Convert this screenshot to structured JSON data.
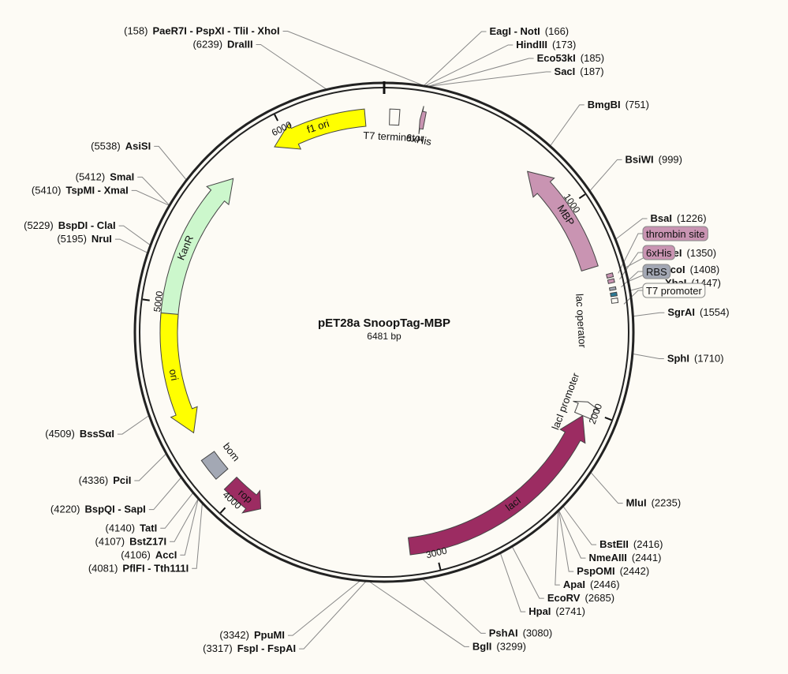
{
  "plasmid": {
    "name": "pET28a SnoopTag-MBP",
    "length_label": "6481 bp",
    "length_bp": 6481
  },
  "ticks": [
    {
      "bp": 1000,
      "label": "1000"
    },
    {
      "bp": 2000,
      "label": "2000"
    },
    {
      "bp": 3000,
      "label": "3000"
    },
    {
      "bp": 4000,
      "label": "4000"
    },
    {
      "bp": 5000,
      "label": "5000"
    },
    {
      "bp": 6000,
      "label": "6000"
    }
  ],
  "colors": {
    "background": "#fdfbf5",
    "backbone": "#222222",
    "MBP": "#c994b2",
    "lacI": "#9c2c62",
    "rop": "#9c2c62",
    "KanR": "#ccf7cc",
    "ori": "#ffff00",
    "f1_ori": "#ffff00",
    "bom": "#a3a8b4",
    "RBS": "#2d7a94",
    "thrombin": "#c994b2",
    "lac_operator": "#888888"
  },
  "features": [
    {
      "key": "mbp",
      "name": "MBP",
      "start": 751,
      "end": 1310,
      "dir": -1,
      "color_key": "MBP",
      "label_inside": true
    },
    {
      "key": "his6_n",
      "name": "6xHis",
      "start": 172,
      "end": 195,
      "dir": -1,
      "color_key": "MBP",
      "label_inside": false
    },
    {
      "key": "t7term",
      "name": "T7 terminator",
      "start": 26,
      "end": 73,
      "dir": 0,
      "color_key": "background",
      "label_inside": false
    },
    {
      "key": "f1ori",
      "name": "f1 ori",
      "start": 5930,
      "end": 6390,
      "dir": -1,
      "color_key": "f1_ori",
      "label_inside": true
    },
    {
      "key": "kanr",
      "name": "KanR",
      "start": 4870,
      "end": 5680,
      "dir": 1,
      "color_key": "KanR",
      "label_inside": true
    },
    {
      "key": "ori",
      "name": "ori",
      "start": 4360,
      "end": 4950,
      "dir": -1,
      "color_key": "ori",
      "label_inside": true
    },
    {
      "key": "bom",
      "name": "bom",
      "start": 4120,
      "end": 4230,
      "dir": 0,
      "color_key": "bom",
      "label_inside": false
    },
    {
      "key": "rop",
      "name": "rop",
      "start": 3870,
      "end": 4060,
      "dir": -1,
      "color_key": "rop",
      "label_inside": true
    },
    {
      "key": "laci",
      "name": "lacI",
      "start": 2030,
      "end": 3120,
      "dir": -1,
      "color_key": "lacI",
      "label_inside": true
    },
    {
      "key": "lacip",
      "name": "lacI promoter",
      "start": 1960,
      "end": 2030,
      "dir": -1,
      "color_key": "background",
      "label_inside": false
    }
  ],
  "small_features": [
    {
      "key": "thrombin",
      "start": 1358,
      "end": 1375,
      "color_key": "thrombin"
    },
    {
      "key": "his6_c",
      "start": 1384,
      "end": 1400,
      "color_key": "thrombin"
    },
    {
      "key": "rbs",
      "start": 1420,
      "end": 1432,
      "color_key": "bom"
    },
    {
      "key": "t7p",
      "start": 1444,
      "end": 1460,
      "color_key": "RBS"
    },
    {
      "key": "lacop",
      "start": 1470,
      "end": 1490,
      "color_key": "background"
    }
  ],
  "lac_operator_label": "lac operator",
  "sites": [
    {
      "name": "PaeR7I - PspXI - TliI - XhoI",
      "pos": "(158)",
      "bp": 158,
      "side": "left"
    },
    {
      "name": "DraIII",
      "pos": "(6239)",
      "bp": 6239,
      "side": "left"
    },
    {
      "name": "AsiSI",
      "pos": "(5538)",
      "bp": 5538,
      "side": "left"
    },
    {
      "name": "SmaI",
      "pos": "(5412)",
      "bp": 5412,
      "side": "left"
    },
    {
      "name": "TspMI - XmaI",
      "pos": "(5410)",
      "bp": 5410,
      "side": "left"
    },
    {
      "name": "BspDI - ClaI",
      "pos": "(5229)",
      "bp": 5229,
      "side": "left"
    },
    {
      "name": "NruI",
      "pos": "(5195)",
      "bp": 5195,
      "side": "left"
    },
    {
      "name": "BssSαI",
      "pos": "(4509)",
      "bp": 4509,
      "side": "left"
    },
    {
      "name": "PciI",
      "pos": "(4336)",
      "bp": 4336,
      "side": "left"
    },
    {
      "name": "BspQI - SapI",
      "pos": "(4220)",
      "bp": 4220,
      "side": "left"
    },
    {
      "name": "TatI",
      "pos": "(4140)",
      "bp": 4140,
      "side": "left"
    },
    {
      "name": "BstZ17I",
      "pos": "(4107)",
      "bp": 4107,
      "side": "left"
    },
    {
      "name": "AccI",
      "pos": "(4106)",
      "bp": 4106,
      "side": "left"
    },
    {
      "name": "PflFI - Tth111I",
      "pos": "(4081)",
      "bp": 4081,
      "side": "left"
    },
    {
      "name": "PpuMI",
      "pos": "(3342)",
      "bp": 3342,
      "side": "left"
    },
    {
      "name": "FspI - FspAI",
      "pos": "(3317)",
      "bp": 3317,
      "side": "left"
    },
    {
      "name": "BglI",
      "pos": "(3299)",
      "bp": 3299,
      "side": "right"
    },
    {
      "name": "PshAI",
      "pos": "(3080)",
      "bp": 3080,
      "side": "right"
    },
    {
      "name": "EcoRV",
      "pos": "(2685)",
      "bp": 2685,
      "side": "right"
    },
    {
      "name": "HpaI",
      "pos": "(2741)",
      "bp": 2741,
      "side": "right"
    },
    {
      "name": "ApaI",
      "pos": "(2446)",
      "bp": 2446,
      "side": "right"
    },
    {
      "name": "PspOMI",
      "pos": "(2442)",
      "bp": 2442,
      "side": "right"
    },
    {
      "name": "NmeAIII",
      "pos": "(2441)",
      "bp": 2441,
      "side": "right"
    },
    {
      "name": "BstEII",
      "pos": "(2416)",
      "bp": 2416,
      "side": "right"
    },
    {
      "name": "MluI",
      "pos": "(2235)",
      "bp": 2235,
      "side": "right"
    },
    {
      "name": "SphI",
      "pos": "(1710)",
      "bp": 1710,
      "side": "right"
    },
    {
      "name": "SgrAI",
      "pos": "(1554)",
      "bp": 1554,
      "side": "right"
    },
    {
      "name": "XbaI",
      "pos": "(1447)",
      "bp": 1447,
      "side": "right"
    },
    {
      "name": "NcoI",
      "pos": "(1408)",
      "bp": 1408,
      "side": "right"
    },
    {
      "name": "NdeI",
      "pos": "(1350)",
      "bp": 1350,
      "side": "right"
    },
    {
      "name": "BsaI",
      "pos": "(1226)",
      "bp": 1226,
      "side": "right"
    },
    {
      "name": "BsiWI",
      "pos": "(999)",
      "bp": 999,
      "side": "right"
    },
    {
      "name": "BmgBI",
      "pos": "(751)",
      "bp": 751,
      "side": "right"
    },
    {
      "name": "SacI",
      "pos": "(187)",
      "bp": 187,
      "side": "right"
    },
    {
      "name": "Eco53kI",
      "pos": "(185)",
      "bp": 185,
      "side": "right"
    },
    {
      "name": "HindIII",
      "pos": "(173)",
      "bp": 173,
      "side": "right"
    },
    {
      "name": "EagI - NotI",
      "pos": "(166)",
      "bp": 166,
      "side": "right"
    }
  ],
  "boxed_labels": [
    {
      "key": "thrombin",
      "text": "thrombin site",
      "bp": 1366,
      "color_key": "thrombin"
    },
    {
      "key": "his6c",
      "text": "6xHis",
      "bp": 1392,
      "color_key": "thrombin"
    },
    {
      "key": "rbs",
      "text": "RBS",
      "bp": 1426,
      "color_key": "bom"
    },
    {
      "key": "t7p",
      "text": "T7 promoter",
      "bp": 1500,
      "color_key": "background"
    }
  ]
}
